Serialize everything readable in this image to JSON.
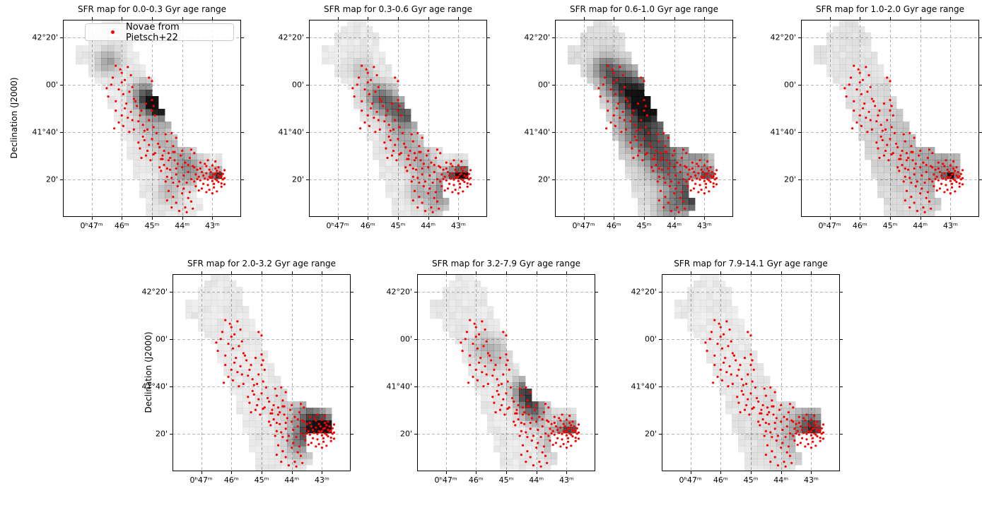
{
  "chart_data": {
    "type": "scatter",
    "figure": "7-panel grid of star-formation-rate maps (grayscale cells) with the same nova catalog overplotted in red on each panel",
    "panels": [
      {
        "title": "SFR map for 0.0-0.3 Gyr age range",
        "blobs": [
          [
            44.75,
            111.5,
            0.035,
            0.95
          ],
          [
            45.05,
            113,
            0.04,
            0.5
          ],
          [
            45.3,
            115.5,
            0.05,
            0.4
          ],
          [
            44.4,
            107.5,
            0.04,
            0.35
          ],
          [
            46.45,
            130,
            0.045,
            0.3
          ],
          [
            45.1,
            104,
            0.06,
            0.18
          ],
          [
            44.6,
            95,
            0.06,
            0.18
          ],
          [
            44.0,
            88,
            0.06,
            0.2
          ],
          [
            43.75,
            83,
            0.05,
            0.25
          ],
          [
            42.8,
            80.5,
            0.025,
            0.65
          ],
          [
            43.05,
            79,
            0.04,
            0.3
          ],
          [
            44.45,
            75,
            0.05,
            0.18
          ]
        ]
      },
      {
        "title": "SFR map for 0.3-0.6 Gyr age range",
        "blobs": [
          [
            45.7,
            115.5,
            0.05,
            0.35
          ],
          [
            45.35,
            112,
            0.05,
            0.3
          ],
          [
            44.95,
            108.5,
            0.05,
            0.35
          ],
          [
            44.6,
            107,
            0.04,
            0.3
          ],
          [
            46.2,
            126,
            0.04,
            0.15
          ],
          [
            44.9,
            99,
            0.06,
            0.2
          ],
          [
            44.5,
            92,
            0.06,
            0.18
          ],
          [
            44.1,
            85,
            0.05,
            0.2
          ],
          [
            43.4,
            78,
            0.05,
            0.3
          ],
          [
            43.0,
            80.5,
            0.04,
            0.55
          ],
          [
            42.8,
            81,
            0.035,
            0.5
          ],
          [
            43.7,
            71,
            0.05,
            0.25
          ],
          [
            44.35,
            75,
            0.04,
            0.2
          ]
        ]
      },
      {
        "title": "SFR map for 0.6-1.0 Gyr age range",
        "blobs": [
          [
            44.8,
            112,
            0.04,
            0.9
          ],
          [
            45.05,
            114,
            0.06,
            0.55
          ],
          [
            45.5,
            118,
            0.07,
            0.45
          ],
          [
            45.9,
            122,
            0.06,
            0.3
          ],
          [
            46.3,
            127,
            0.05,
            0.35
          ],
          [
            45.2,
            104,
            0.08,
            0.35
          ],
          [
            44.8,
            98,
            0.08,
            0.35
          ],
          [
            44.45,
            90,
            0.07,
            0.3
          ],
          [
            44.1,
            83,
            0.07,
            0.3
          ],
          [
            43.6,
            75,
            0.06,
            0.35
          ],
          [
            43.3,
            70,
            0.05,
            0.4
          ],
          [
            44.3,
            110,
            0.05,
            0.3
          ],
          [
            43.9,
            104,
            0.05,
            0.25
          ],
          [
            43.55,
            97,
            0.05,
            0.25
          ],
          [
            43.2,
            90,
            0.05,
            0.25
          ],
          [
            42.9,
            81,
            0.035,
            0.5
          ],
          [
            44.15,
            68,
            0.05,
            0.3
          ]
        ]
      },
      {
        "title": "SFR map for 1.0-2.0 Gyr age range",
        "blobs": [
          [
            43.0,
            80,
            0.025,
            0.8
          ],
          [
            43.3,
            83,
            0.1,
            0.18
          ],
          [
            43.9,
            90,
            0.18,
            0.1
          ],
          [
            44.6,
            101,
            0.16,
            0.07
          ]
        ]
      },
      {
        "title": "SFR map for 2.0-3.2 Gyr age range",
        "blobs": [
          [
            43.2,
            84,
            0.06,
            0.35
          ],
          [
            42.95,
            81,
            0.05,
            0.6
          ],
          [
            42.75,
            80.5,
            0.035,
            0.85
          ],
          [
            43.45,
            87,
            0.05,
            0.25
          ],
          [
            43.6,
            79,
            0.05,
            0.3
          ],
          [
            43.85,
            74,
            0.05,
            0.2
          ],
          [
            43.0,
            77,
            0.04,
            0.3
          ],
          [
            44.0,
            90,
            0.08,
            0.12
          ]
        ]
      },
      {
        "title": "SFR map for 3.2-7.9 Gyr age range",
        "blobs": [
          [
            44.3,
            96,
            0.05,
            0.4
          ],
          [
            44.15,
            92,
            0.05,
            0.35
          ],
          [
            44.45,
            99,
            0.04,
            0.25
          ],
          [
            45.3,
            113,
            0.06,
            0.15
          ],
          [
            45.75,
            117,
            0.05,
            0.15
          ],
          [
            43.05,
            81,
            0.05,
            0.3
          ],
          [
            42.85,
            80.5,
            0.03,
            0.45
          ],
          [
            43.4,
            76,
            0.05,
            0.2
          ],
          [
            44.0,
            87,
            0.04,
            0.2
          ]
        ]
      },
      {
        "title": "SFR map for 7.9-14.1 Gyr age range",
        "blobs": [
          [
            42.9,
            81,
            0.04,
            0.4
          ],
          [
            43.15,
            82,
            0.07,
            0.2
          ],
          [
            43.45,
            78,
            0.08,
            0.12
          ],
          [
            43.0,
            85,
            0.05,
            0.15
          ],
          [
            43.8,
            88,
            0.2,
            0.06
          ]
        ]
      }
    ],
    "panel_base_boost": [
      0.005,
      0.01,
      0.05,
      0.03,
      0.01,
      0.01,
      0.005
    ],
    "x_axis": {
      "tick_labels": [
        "0ʰ47ᵐ",
        "46ᵐ",
        "45ᵐ",
        "44ᵐ",
        "43ᵐ"
      ],
      "tick_ra_minutes": [
        47,
        46,
        45,
        44,
        43
      ],
      "range_ra_minutes": [
        47.95,
        42.05
      ]
    },
    "y_axis": {
      "label": "Declination (J2000)",
      "tick_labels": [
        "42°20'",
        "00'",
        "41°40'",
        "20'"
      ],
      "tick_dec_arcmin": [
        140,
        120,
        100,
        80
      ],
      "range_dec_arcmin": [
        64,
        147.5
      ]
    },
    "legend": {
      "label": "Novae from Pietsch+22",
      "marker_color": "#ff0000"
    },
    "footprint": {
      "lobes": [
        [
          46.38,
          137.8,
          44.28,
          69.7,
          0.115,
          0.15
        ],
        [
          44.4,
          87.0,
          43.0,
          86.1,
          0.07,
          0.07
        ],
        [
          47.07,
          132.1,
          46.38,
          123.0,
          0.075,
          0.075
        ]
      ],
      "hole_ra_dec": [
        47.3,
        126.7
      ],
      "grid_cols": 28,
      "grid_rows": 31
    },
    "style": {
      "grid_color": "#b5b5b5",
      "spine_color": "#000000",
      "cell_base_alpha": 0.075,
      "cell_noise_amp": 0.05,
      "dot_color": "#ff0000",
      "dot_radius_px": 1.6
    },
    "novae_points_ra_dec": [
      [
        46.2,
        128
      ],
      [
        46.0,
        125
      ],
      [
        45.9,
        122
      ],
      [
        46.35,
        120
      ],
      [
        46.1,
        118
      ],
      [
        45.75,
        117
      ],
      [
        46.45,
        115
      ],
      [
        45.6,
        114
      ],
      [
        46.2,
        113
      ],
      [
        45.85,
        112
      ],
      [
        46.0,
        121
      ],
      [
        45.7,
        124
      ],
      [
        46.3,
        123
      ],
      [
        45.95,
        116
      ],
      [
        46.5,
        118.5
      ],
      [
        45.65,
        119
      ],
      [
        46.05,
        126.5
      ],
      [
        45.8,
        127.5
      ],
      [
        45.1,
        123
      ],
      [
        45.0,
        121.5
      ],
      [
        45.9,
        110
      ],
      [
        45.5,
        111
      ],
      [
        45.2,
        112
      ],
      [
        45.0,
        109
      ],
      [
        45.4,
        107
      ],
      [
        45.8,
        106
      ],
      [
        46.1,
        104
      ],
      [
        45.3,
        103
      ],
      [
        45.6,
        101
      ],
      [
        44.95,
        102
      ],
      [
        45.1,
        105
      ],
      [
        45.7,
        108.5
      ],
      [
        46.0,
        107
      ],
      [
        45.45,
        104.5
      ],
      [
        44.9,
        107
      ],
      [
        45.25,
        100.5
      ],
      [
        45.55,
        113
      ],
      [
        45.0,
        113.5
      ],
      [
        45.35,
        109
      ],
      [
        45.65,
        105
      ],
      [
        45.15,
        101
      ],
      [
        45.95,
        102.5
      ],
      [
        46.2,
        109
      ],
      [
        46.25,
        101.5
      ],
      [
        44.95,
        111
      ],
      [
        45.75,
        100
      ],
      [
        45.3,
        98
      ],
      [
        45.0,
        97
      ],
      [
        44.8,
        95
      ],
      [
        44.5,
        96
      ],
      [
        44.3,
        94
      ],
      [
        44.6,
        92
      ],
      [
        44.9,
        91
      ],
      [
        45.2,
        90
      ],
      [
        45.4,
        93
      ],
      [
        44.4,
        89
      ],
      [
        44.7,
        88.5
      ],
      [
        45.1,
        94.5
      ],
      [
        44.25,
        91.5
      ],
      [
        44.55,
        99
      ],
      [
        44.85,
        99.5
      ],
      [
        45.45,
        95.5
      ],
      [
        44.2,
        97.5
      ],
      [
        44.65,
        90
      ],
      [
        45.05,
        88
      ],
      [
        45.35,
        89
      ],
      [
        44.35,
        99.5
      ],
      [
        44.75,
        93.5
      ],
      [
        45.15,
        92
      ],
      [
        44.45,
        88
      ],
      [
        45.25,
        96.5
      ],
      [
        44.95,
        90.5
      ],
      [
        44.6,
        86
      ],
      [
        44.4,
        84
      ],
      [
        44.2,
        82
      ],
      [
        44.0,
        85
      ],
      [
        43.8,
        83
      ],
      [
        43.7,
        80
      ],
      [
        44.1,
        79
      ],
      [
        44.3,
        78.5
      ],
      [
        44.5,
        81
      ],
      [
        44.7,
        83.5
      ],
      [
        43.9,
        87
      ],
      [
        44.05,
        90
      ],
      [
        44.25,
        88
      ],
      [
        44.45,
        91
      ],
      [
        43.75,
        89
      ],
      [
        43.65,
        85.5
      ],
      [
        44.55,
        79
      ],
      [
        44.65,
        88.5
      ],
      [
        43.85,
        78.5
      ],
      [
        44.15,
        86.5
      ],
      [
        44.35,
        80.5
      ],
      [
        43.95,
        81.5
      ],
      [
        44.75,
        85
      ],
      [
        43.6,
        91
      ],
      [
        44.0,
        92
      ],
      [
        44.3,
        91.5
      ],
      [
        43.7,
        92.5
      ],
      [
        44.5,
        84.5
      ],
      [
        43.8,
        86
      ],
      [
        44.2,
        84.5
      ],
      [
        43.0,
        81
      ],
      [
        42.9,
        80
      ],
      [
        42.8,
        81.5
      ],
      [
        42.95,
        82
      ],
      [
        43.05,
        80.5
      ],
      [
        42.85,
        79.5
      ],
      [
        43.1,
        81
      ],
      [
        42.75,
        80.8
      ],
      [
        42.9,
        82.3
      ],
      [
        43.0,
        79.2
      ],
      [
        42.7,
        81.2
      ],
      [
        43.15,
        79.8
      ],
      [
        42.8,
        78.8
      ],
      [
        43.2,
        82.5
      ],
      [
        42.65,
        79.9
      ],
      [
        43.05,
        83
      ],
      [
        42.95,
        78
      ],
      [
        43.25,
        80.2
      ],
      [
        42.6,
        80.4
      ],
      [
        43.1,
        84
      ],
      [
        42.85,
        83.5
      ],
      [
        43.3,
        81.5
      ],
      [
        42.7,
        78.2
      ],
      [
        43.35,
        83
      ],
      [
        42.9,
        84.5
      ],
      [
        43.15,
        77.5
      ],
      [
        43.4,
        79.5
      ],
      [
        42.75,
        83
      ],
      [
        43.45,
        81
      ],
      [
        43.2,
        85.5
      ],
      [
        42.65,
        82.2
      ],
      [
        43.5,
        80
      ],
      [
        43.3,
        78
      ],
      [
        43.55,
        82
      ],
      [
        42.6,
        77.8
      ],
      [
        43.4,
        84.5
      ],
      [
        43.0,
        85.8
      ],
      [
        43.6,
        79
      ],
      [
        42.8,
        85
      ],
      [
        43.25,
        86.5
      ],
      [
        43.5,
        84
      ],
      [
        42.95,
        76.5
      ],
      [
        43.35,
        76
      ],
      [
        43.1,
        75.5
      ],
      [
        43.55,
        77
      ],
      [
        42.7,
        76.8
      ],
      [
        43.45,
        75.2
      ],
      [
        42.85,
        74.8
      ],
      [
        43.0,
        74
      ],
      [
        43.2,
        74.5
      ],
      [
        42.6,
        83.8
      ],
      [
        43.6,
        85
      ],
      [
        43.4,
        87
      ],
      [
        43.15,
        88
      ],
      [
        42.9,
        87.5
      ],
      [
        44.0,
        74
      ],
      [
        43.8,
        72
      ],
      [
        44.2,
        70
      ],
      [
        43.9,
        68
      ],
      [
        44.1,
        66.5
      ],
      [
        43.7,
        70.5
      ],
      [
        44.3,
        72.5
      ],
      [
        43.95,
        76
      ],
      [
        44.45,
        75
      ],
      [
        43.75,
        74.5
      ],
      [
        44.15,
        77
      ],
      [
        43.65,
        67.5
      ],
      [
        44.35,
        68
      ],
      [
        44.5,
        71
      ],
      [
        43.85,
        66
      ]
    ]
  }
}
